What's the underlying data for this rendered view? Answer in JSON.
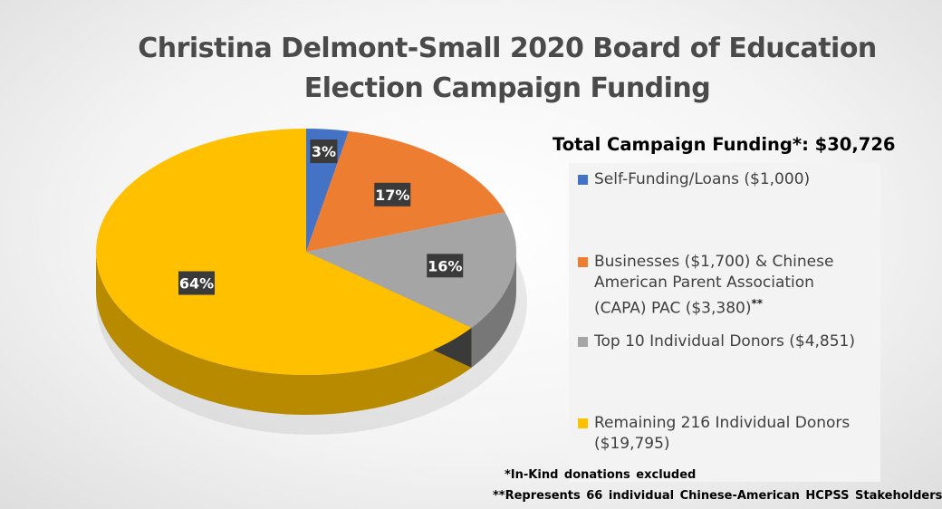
{
  "chart_data": {
    "type": "pie",
    "title": "Christina Delmont-Small 2020 Board of Education Election Campaign Funding",
    "title_lines": [
      "Christina Delmont-Small 2020 Board of Education",
      "Election Campaign Funding"
    ],
    "total_label": "Total Campaign Funding*: $30,726",
    "slices": [
      {
        "label": "Self-Funding/Loans ($1,000)",
        "percent_label": "3%",
        "value": 1000,
        "color": "#4472c4"
      },
      {
        "label": "Businesses ($1,700) & Chinese American Parent Association (CAPA) PAC ($3,380)",
        "label_marker": "**",
        "percent_label": "17%",
        "value": 5080,
        "color": "#ed7d31"
      },
      {
        "label": "Top 10 Individual Donors ($4,851)",
        "percent_label": "16%",
        "value": 4851,
        "color": "#a5a5a5"
      },
      {
        "label": "Remaining 216 Individual Donors ($19,795)",
        "percent_label": "64%",
        "value": 19795,
        "color": "#ffc000"
      }
    ],
    "legend_position": "right",
    "style": "3d-pie"
  },
  "notes": {
    "in_kind": "*In-Kind donations excluded",
    "stakeholders": "**Represents 66 individual Chinese-American HCPSS Stakeholders"
  }
}
